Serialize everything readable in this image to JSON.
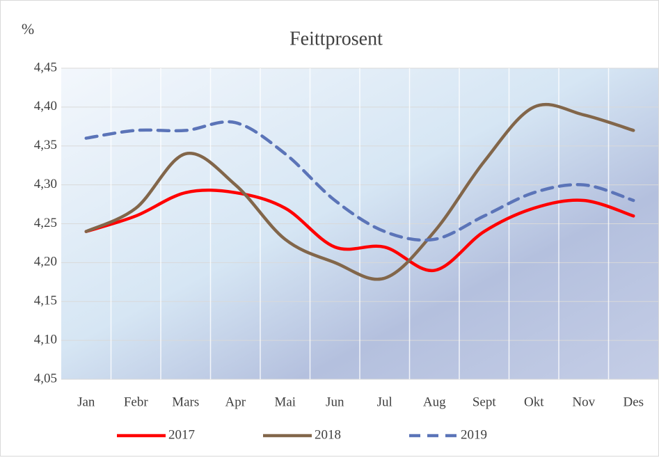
{
  "chart_data": {
    "type": "line",
    "title": "Feittprosent",
    "y_label": "%",
    "categories": [
      "Jan",
      "Febr",
      "Mars",
      "Apr",
      "Mai",
      "Jun",
      "Jul",
      "Aug",
      "Sept",
      "Okt",
      "Nov",
      "Des"
    ],
    "series": [
      {
        "name": "2017",
        "color": "#ff0000",
        "dash": false,
        "values": [
          4.24,
          4.26,
          4.29,
          4.29,
          4.27,
          4.22,
          4.22,
          4.19,
          4.24,
          4.27,
          4.28,
          4.26
        ]
      },
      {
        "name": "2018",
        "color": "#82664a",
        "dash": false,
        "values": [
          4.24,
          4.27,
          4.34,
          4.3,
          4.23,
          4.2,
          4.18,
          4.24,
          4.33,
          4.4,
          4.39,
          4.37
        ]
      },
      {
        "name": "2019",
        "color": "#5b74b8",
        "dash": true,
        "values": [
          4.36,
          4.37,
          4.37,
          4.38,
          4.34,
          4.28,
          4.24,
          4.23,
          4.26,
          4.29,
          4.3,
          4.28
        ]
      }
    ],
    "ylim": [
      4.05,
      4.45
    ],
    "yticks": [
      {
        "value": 4.05,
        "label": "4,05"
      },
      {
        "value": 4.1,
        "label": "4,10"
      },
      {
        "value": 4.15,
        "label": "4,15"
      },
      {
        "value": 4.2,
        "label": "4,20"
      },
      {
        "value": 4.25,
        "label": "4,25"
      },
      {
        "value": 4.3,
        "label": "4,30"
      },
      {
        "value": 4.35,
        "label": "4,35"
      },
      {
        "value": 4.4,
        "label": "4,40"
      },
      {
        "value": 4.45,
        "label": "4,45"
      }
    ],
    "grid": true,
    "smooth": true,
    "legend": "bottom"
  }
}
